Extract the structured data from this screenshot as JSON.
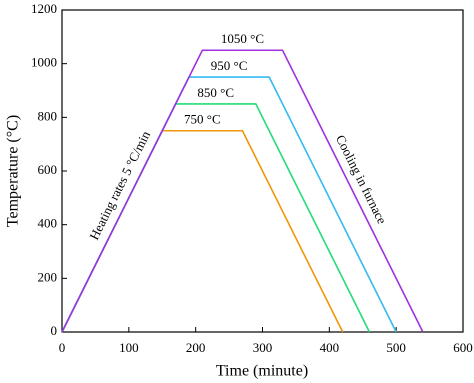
{
  "chart_data": {
    "type": "line",
    "xlabel": "Time (minute)",
    "ylabel": "Temperature (°C)",
    "annotations": [
      "Heating rates 5 °C/min",
      "Cooling in furnace"
    ],
    "series": [
      {
        "name": "750 °C",
        "color": "#f0960a",
        "x": [
          0,
          150,
          270,
          420
        ],
        "values": [
          0,
          750,
          750,
          0
        ]
      },
      {
        "name": "850 °C",
        "color": "#22dd77",
        "x": [
          0,
          170,
          290,
          460
        ],
        "values": [
          0,
          850,
          850,
          0
        ]
      },
      {
        "name": "950 °C",
        "color": "#33bbee",
        "x": [
          0,
          190,
          310,
          500
        ],
        "values": [
          0,
          950,
          950,
          0
        ]
      },
      {
        "name": "1050 °C",
        "color": "#a030e0",
        "x": [
          0,
          210,
          330,
          540
        ],
        "values": [
          0,
          1050,
          1050,
          0
        ]
      }
    ],
    "xlim": [
      0,
      600
    ],
    "xticks": [
      0,
      100,
      200,
      300,
      400,
      500,
      600
    ],
    "ylim": [
      0,
      1200
    ],
    "yticks": [
      0,
      200,
      400,
      600,
      800,
      1000,
      1200
    ]
  }
}
